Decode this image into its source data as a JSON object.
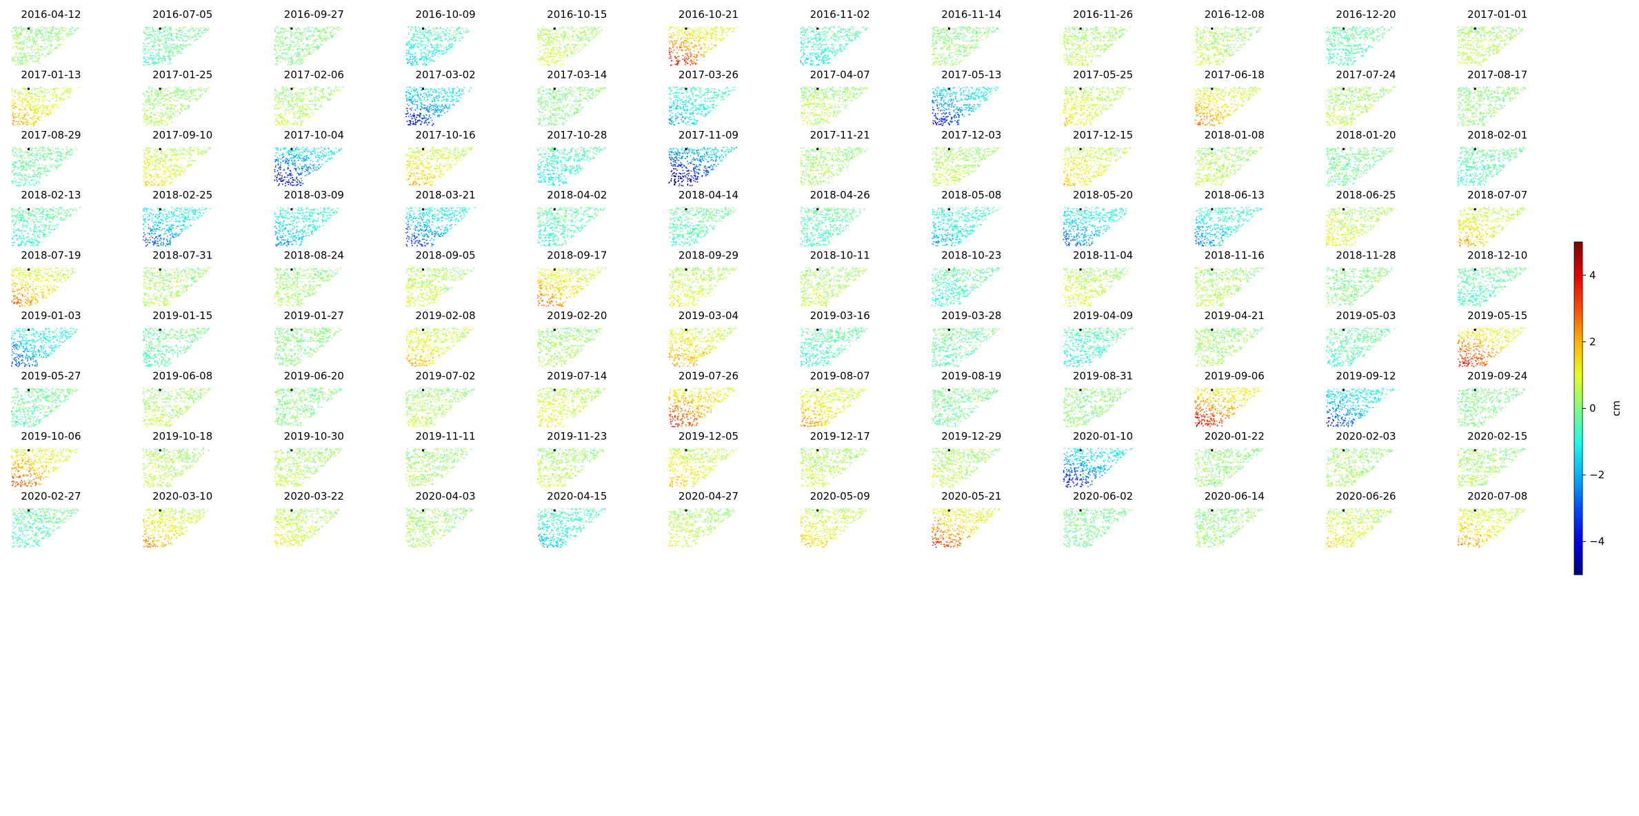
{
  "chart_data": {
    "type": "heatmap",
    "colormap": "jet",
    "panel_titles": [
      "2016-04-12",
      "2016-07-05",
      "2016-09-27",
      "2016-10-09",
      "2016-10-15",
      "2016-10-21",
      "2016-11-02",
      "2016-11-14",
      "2016-11-26",
      "2016-12-08",
      "2016-12-20",
      "2017-01-01",
      "2017-01-13",
      "2017-01-25",
      "2017-02-06",
      "2017-03-02",
      "2017-03-14",
      "2017-03-26",
      "2017-04-07",
      "2017-05-13",
      "2017-05-25",
      "2017-06-18",
      "2017-07-24",
      "2017-08-17",
      "2017-08-29",
      "2017-09-10",
      "2017-10-04",
      "2017-10-16",
      "2017-10-28",
      "2017-11-09",
      "2017-11-21",
      "2017-12-03",
      "2017-12-15",
      "2018-01-08",
      "2018-01-20",
      "2018-02-01",
      "2018-02-13",
      "2018-02-25",
      "2018-03-09",
      "2018-03-21",
      "2018-04-02",
      "2018-04-14",
      "2018-04-26",
      "2018-05-08",
      "2018-05-20",
      "2018-06-13",
      "2018-06-25",
      "2018-07-07",
      "2018-07-19",
      "2018-07-31",
      "2018-08-24",
      "2018-09-05",
      "2018-09-17",
      "2018-09-29",
      "2018-10-11",
      "2018-10-23",
      "2018-11-04",
      "2018-11-16",
      "2018-11-28",
      "2018-12-10",
      "2019-01-03",
      "2019-01-15",
      "2019-01-27",
      "2019-02-08",
      "2019-02-20",
      "2019-03-04",
      "2019-03-16",
      "2019-03-28",
      "2019-04-09",
      "2019-04-21",
      "2019-05-03",
      "2019-05-15",
      "2019-05-27",
      "2019-06-08",
      "2019-06-20",
      "2019-07-02",
      "2019-07-14",
      "2019-07-26",
      "2019-08-07",
      "2019-08-19",
      "2019-08-31",
      "2019-09-06",
      "2019-09-12",
      "2019-09-24",
      "2019-10-06",
      "2019-10-18",
      "2019-10-30",
      "2019-11-11",
      "2019-11-23",
      "2019-12-05",
      "2019-12-17",
      "2019-12-29",
      "2020-01-10",
      "2020-01-22",
      "2020-02-03",
      "2020-02-15",
      "2020-02-27",
      "2020-03-10",
      "2020-03-22",
      "2020-04-03",
      "2020-04-15",
      "2020-04-27",
      "2020-05-09",
      "2020-05-21",
      "2020-06-02",
      "2020-06-14",
      "2020-06-26",
      "2020-07-08"
    ],
    "panel_mean_cm": [
      0.2,
      -0.4,
      0.0,
      -1.2,
      0.8,
      2.8,
      -1.0,
      0.2,
      0.6,
      0.6,
      -0.6,
      0.6,
      1.6,
      0.4,
      0.6,
      -3.0,
      0.0,
      -1.6,
      0.6,
      -3.0,
      1.2,
      2.0,
      0.6,
      0.2,
      -0.4,
      1.2,
      -3.4,
      1.6,
      -1.2,
      -4.2,
      0.4,
      0.6,
      1.4,
      0.6,
      -0.2,
      -0.6,
      -0.8,
      -2.4,
      -1.8,
      -2.6,
      -0.8,
      -0.6,
      -0.6,
      -1.6,
      -2.2,
      -1.8,
      1.0,
      1.6,
      2.0,
      0.4,
      0.4,
      0.8,
      2.0,
      1.0,
      0.6,
      -0.8,
      1.0,
      0.6,
      0.0,
      -0.6,
      -2.2,
      -0.4,
      0.0,
      1.6,
      0.4,
      1.8,
      -0.8,
      -0.4,
      -1.0,
      0.4,
      -0.6,
      2.8,
      -0.4,
      0.6,
      0.0,
      0.6,
      1.2,
      2.8,
      1.8,
      -0.2,
      0.2,
      3.0,
      -2.6,
      0.0,
      2.4,
      0.6,
      0.6,
      0.4,
      0.6,
      1.4,
      0.8,
      0.6,
      -3.0,
      0.2,
      0.4,
      0.4,
      -0.6,
      1.8,
      1.0,
      0.4,
      -1.4,
      0.8,
      1.4,
      2.6,
      -0.2,
      0.2,
      1.2,
      1.8
    ],
    "colorbar": {
      "label": "cm",
      "ticks": [
        "4",
        "2",
        "0",
        "−2",
        "−4"
      ],
      "tick_values": [
        4,
        2,
        0,
        -2,
        -4
      ],
      "vmin": -5,
      "vmax": 5
    }
  }
}
